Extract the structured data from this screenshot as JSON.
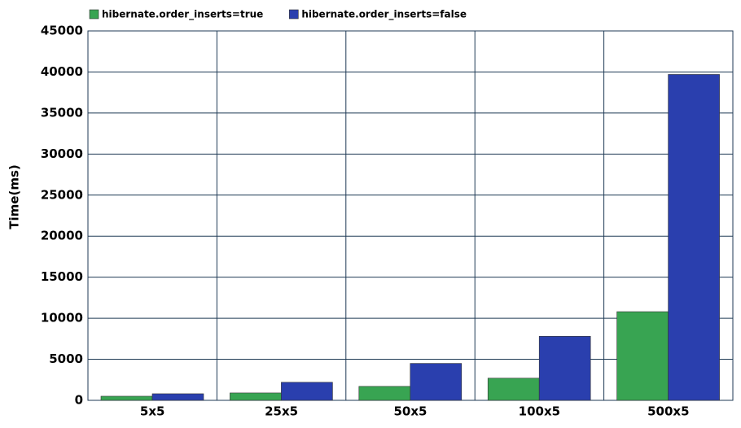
{
  "chart_data": {
    "type": "bar",
    "y_label": "Time(ms)",
    "categories": [
      "5x5",
      "25x5",
      "50x5",
      "100x5",
      "500x5"
    ],
    "series": [
      {
        "name": "hibernate.order_inserts=true",
        "color": "#38a452",
        "values": [
          500,
          900,
          1700,
          2700,
          10800
        ]
      },
      {
        "name": "hibernate.order_inserts=false",
        "color": "#2a3fae",
        "values": [
          800,
          2200,
          4500,
          7800,
          39700
        ]
      }
    ],
    "ylim": [
      0,
      45000
    ],
    "yticks": [
      0,
      5000,
      10000,
      15000,
      20000,
      25000,
      30000,
      35000,
      40000,
      45000
    ],
    "grid": true,
    "legend": "top-left"
  }
}
